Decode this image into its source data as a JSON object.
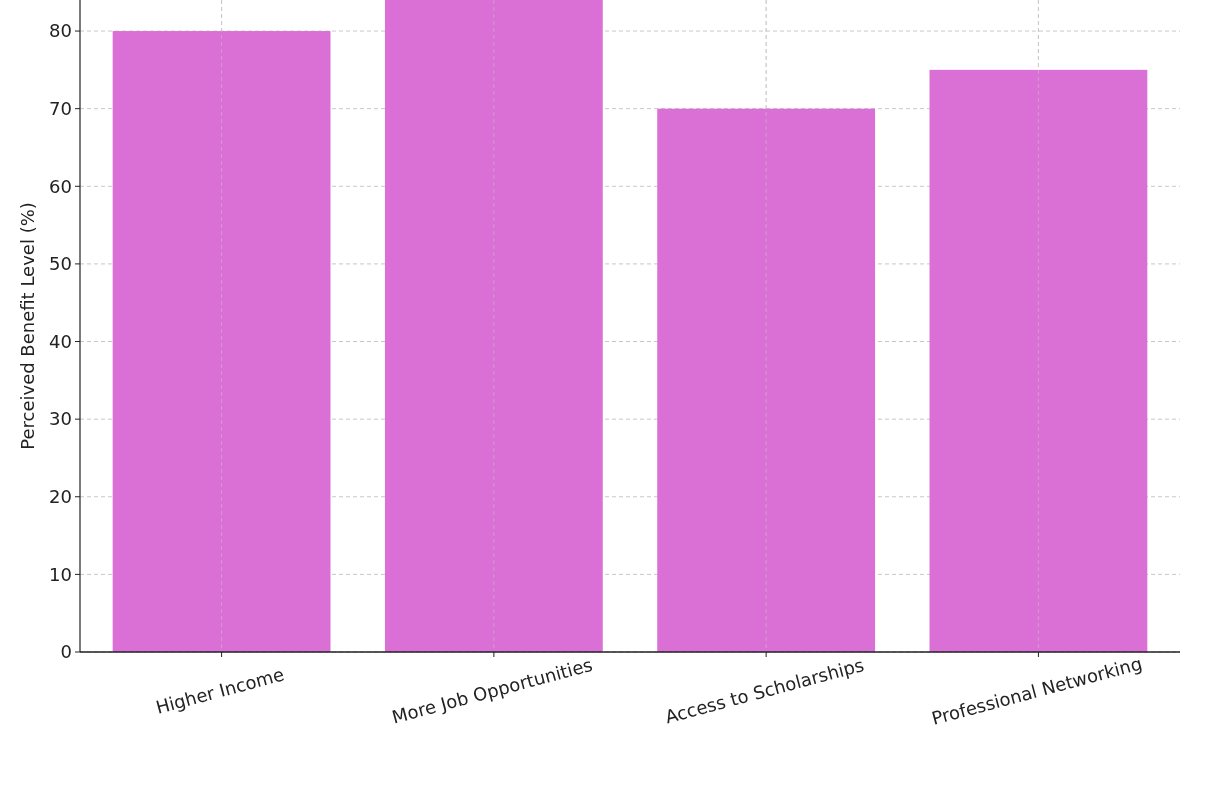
{
  "chart_data": {
    "type": "bar",
    "ylabel": "Perceived Benefit Level (%)",
    "categories": [
      "Higher Income",
      "More Job Opportunities",
      "Access to Scholarships",
      "Professional Networking"
    ],
    "values": [
      80,
      84,
      70,
      75
    ],
    "color": "#da70d6",
    "ylim": [
      0,
      84
    ],
    "yticks": [
      0,
      10,
      20,
      30,
      40,
      50,
      60,
      70,
      80
    ],
    "grid": true
  }
}
